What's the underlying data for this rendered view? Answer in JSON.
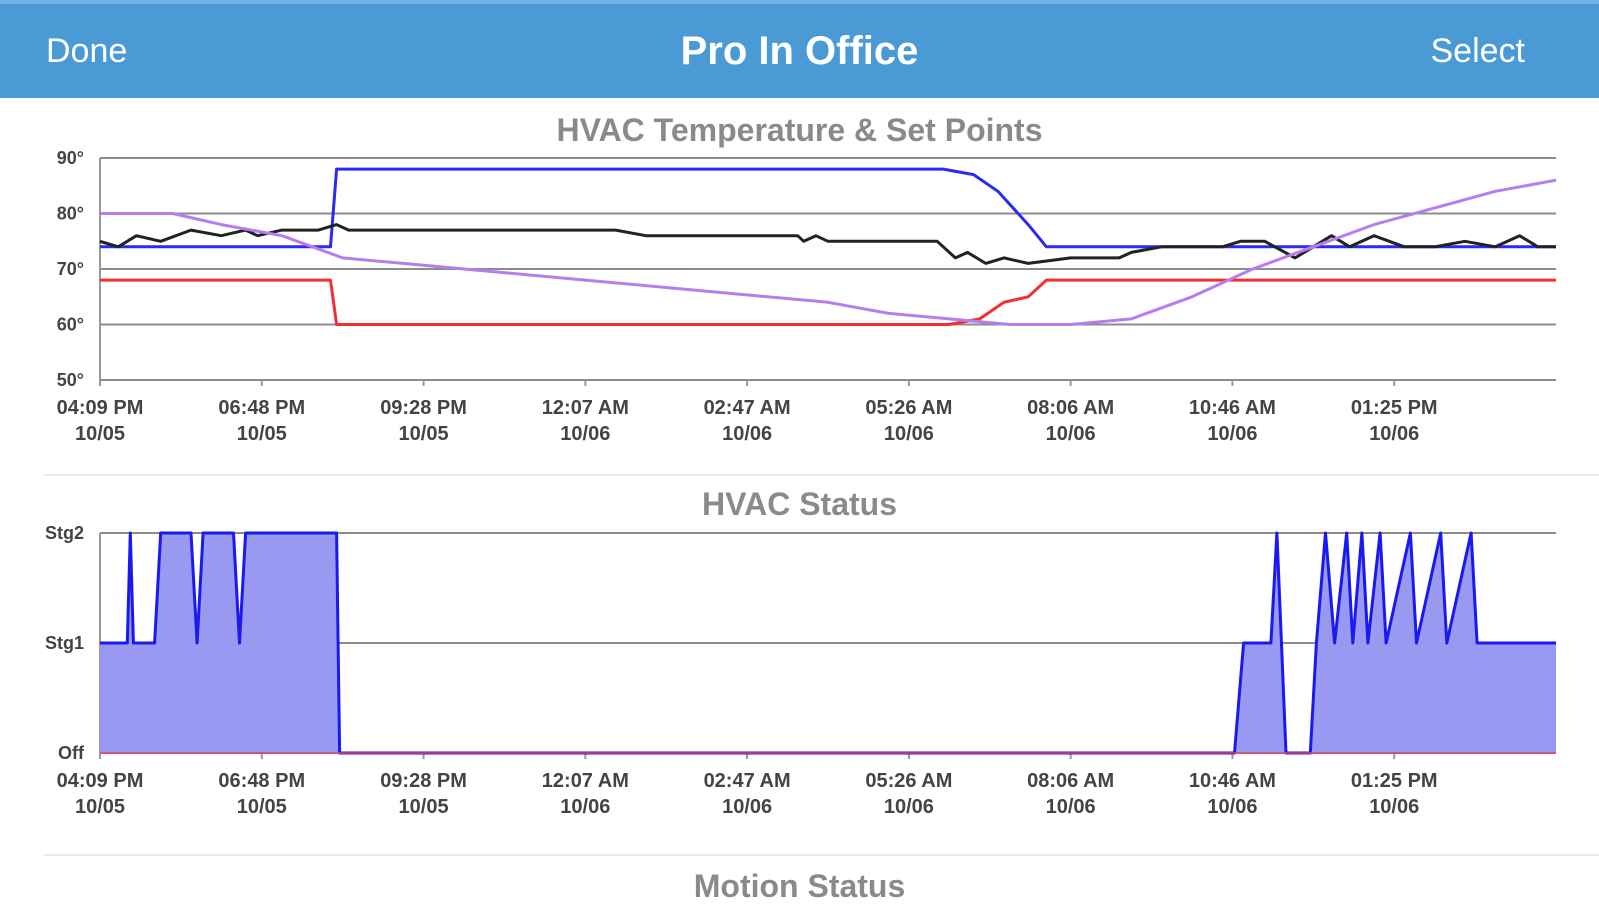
{
  "nav": {
    "left_label": "Done",
    "title": "Pro In Office",
    "right_label": "Select"
  },
  "colors": {
    "nav_bg": "#4a9ad6",
    "cool_setpoint": "#2a2af0",
    "heat_setpoint": "#f03030",
    "indoor_temp": "#222222",
    "outdoor_temp": "#b77cf0",
    "status_fill": "#9999f2",
    "status_line": "#1a1af0"
  },
  "chart_data": [
    {
      "type": "line",
      "title": "HVAC Temperature & Set Points",
      "x_ticks": [
        [
          "04:09 PM",
          "10/05"
        ],
        [
          "06:48 PM",
          "10/05"
        ],
        [
          "09:28 PM",
          "10/05"
        ],
        [
          "12:07 AM",
          "10/06"
        ],
        [
          "02:47 AM",
          "10/06"
        ],
        [
          "05:26 AM",
          "10/06"
        ],
        [
          "08:06 AM",
          "10/06"
        ],
        [
          "10:46 AM",
          "10/06"
        ],
        [
          "01:25 PM",
          "10/06"
        ]
      ],
      "y_ticks": [
        "90°",
        "80°",
        "70°",
        "60°",
        "50°"
      ],
      "ylim": [
        50,
        90
      ],
      "x_hours_range": [
        0,
        24
      ],
      "series": [
        {
          "points": [
            [
              0,
              74
            ],
            [
              3.8,
              74
            ],
            [
              3.9,
              88
            ],
            [
              13.9,
              88
            ],
            [
              14.4,
              87
            ],
            [
              14.8,
              84
            ],
            [
              15.3,
              78
            ],
            [
              15.6,
              74
            ],
            [
              24,
              74
            ]
          ]
        },
        {
          "points": [
            [
              0,
              68
            ],
            [
              3.8,
              68
            ],
            [
              3.9,
              60
            ],
            [
              14,
              60
            ],
            [
              14.5,
              61
            ],
            [
              14.9,
              64
            ],
            [
              15.3,
              65
            ],
            [
              15.6,
              68
            ],
            [
              24,
              68
            ]
          ]
        },
        {
          "points": [
            [
              0,
              75
            ],
            [
              0.3,
              74
            ],
            [
              0.6,
              76
            ],
            [
              1,
              75
            ],
            [
              1.5,
              77
            ],
            [
              2,
              76
            ],
            [
              2.4,
              77
            ],
            [
              2.6,
              76
            ],
            [
              3,
              77
            ],
            [
              3.6,
              77
            ],
            [
              3.9,
              78
            ],
            [
              4.1,
              77
            ],
            [
              8.5,
              77
            ],
            [
              9,
              76
            ],
            [
              11.5,
              76
            ],
            [
              11.6,
              75
            ],
            [
              11.8,
              76
            ],
            [
              12,
              75
            ],
            [
              13.8,
              75
            ],
            [
              14.1,
              72
            ],
            [
              14.3,
              73
            ],
            [
              14.6,
              71
            ],
            [
              14.9,
              72
            ],
            [
              15.3,
              71
            ],
            [
              16,
              72
            ],
            [
              16.8,
              72
            ],
            [
              17,
              73
            ],
            [
              17.5,
              74
            ],
            [
              18.5,
              74
            ],
            [
              18.8,
              75
            ],
            [
              19.2,
              75
            ],
            [
              19.7,
              72
            ],
            [
              20,
              74
            ],
            [
              20.3,
              76
            ],
            [
              20.6,
              74
            ],
            [
              21,
              76
            ],
            [
              21.5,
              74
            ],
            [
              22,
              74
            ],
            [
              22.5,
              75
            ],
            [
              23,
              74
            ],
            [
              23.4,
              76
            ],
            [
              23.7,
              74
            ],
            [
              24,
              74
            ]
          ]
        },
        {
          "points": [
            [
              0,
              80
            ],
            [
              1.2,
              80
            ],
            [
              2,
              78
            ],
            [
              3,
              76
            ],
            [
              4,
              72
            ],
            [
              5,
              71
            ],
            [
              6,
              70
            ],
            [
              8,
              68
            ],
            [
              10,
              66
            ],
            [
              12,
              64
            ],
            [
              13,
              62
            ],
            [
              14,
              61
            ],
            [
              15,
              60
            ],
            [
              16,
              60
            ],
            [
              17,
              61
            ],
            [
              18,
              65
            ],
            [
              19,
              70
            ],
            [
              20,
              74
            ],
            [
              21,
              78
            ],
            [
              22,
              81
            ],
            [
              23,
              84
            ],
            [
              24,
              86
            ]
          ]
        }
      ]
    },
    {
      "type": "area",
      "title": "HVAC Status",
      "x_ticks": [
        [
          "04:09 PM",
          "10/05"
        ],
        [
          "06:48 PM",
          "10/05"
        ],
        [
          "09:28 PM",
          "10/05"
        ],
        [
          "12:07 AM",
          "10/06"
        ],
        [
          "02:47 AM",
          "10/06"
        ],
        [
          "05:26 AM",
          "10/06"
        ],
        [
          "08:06 AM",
          "10/06"
        ],
        [
          "10:46 AM",
          "10/06"
        ],
        [
          "01:25 PM",
          "10/06"
        ]
      ],
      "y_ticks": [
        "Stg2",
        "Stg1",
        "Off"
      ],
      "ylim": [
        0,
        2
      ],
      "x_hours_range": [
        0,
        24
      ],
      "series": [
        {
          "points": [
            [
              0,
              1
            ],
            [
              0.45,
              1
            ],
            [
              0.5,
              2
            ],
            [
              0.55,
              1
            ],
            [
              0.9,
              1
            ],
            [
              1,
              2
            ],
            [
              1.5,
              2
            ],
            [
              1.6,
              1
            ],
            [
              1.7,
              2
            ],
            [
              2.2,
              2
            ],
            [
              2.3,
              1
            ],
            [
              2.4,
              2
            ],
            [
              3.9,
              2
            ],
            [
              3.95,
              0
            ],
            [
              18.7,
              0
            ],
            [
              18.85,
              1
            ],
            [
              19.3,
              1
            ],
            [
              19.4,
              2
            ],
            [
              19.55,
              0
            ],
            [
              19.95,
              0
            ],
            [
              20.05,
              1
            ],
            [
              20.2,
              2
            ],
            [
              20.35,
              1
            ],
            [
              20.55,
              2
            ],
            [
              20.65,
              1
            ],
            [
              20.8,
              2
            ],
            [
              20.9,
              1
            ],
            [
              21.1,
              2
            ],
            [
              21.2,
              1
            ],
            [
              21.6,
              2
            ],
            [
              21.7,
              1
            ],
            [
              22.1,
              2
            ],
            [
              22.2,
              1
            ],
            [
              22.6,
              2
            ],
            [
              22.7,
              1
            ],
            [
              24,
              1
            ]
          ]
        }
      ]
    }
  ],
  "panels": {
    "motion_title": "Motion Status"
  }
}
